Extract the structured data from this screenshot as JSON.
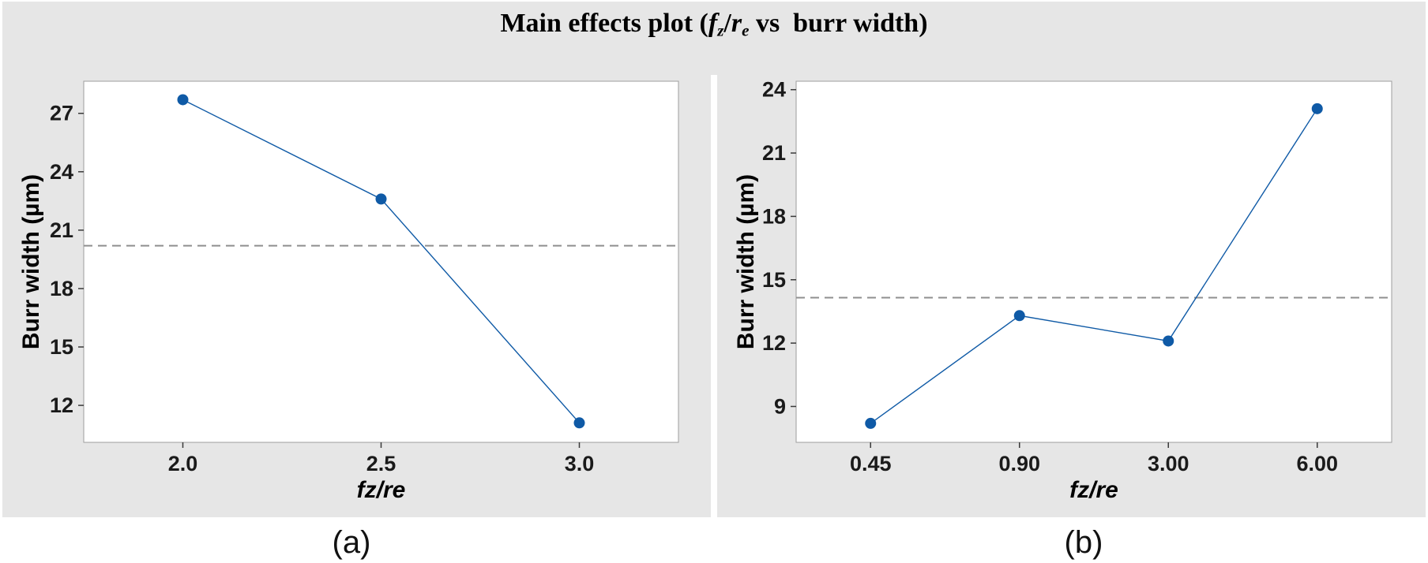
{
  "colors": {
    "series_blue": "#0f5aa6",
    "dash_gray": "#8f8f8f",
    "panel_bg": "#e6e6e6",
    "plot_border": "#9e9e9e",
    "tick_text": "#1a1a1a"
  },
  "title": {
    "text": "Main effects plot (fz/re vs  burr width)",
    "parts": [
      {
        "t": "Main effects plot (",
        "it": false,
        "sub": false
      },
      {
        "t": "f",
        "it": true,
        "sub": false
      },
      {
        "t": "z",
        "it": true,
        "sub": true
      },
      {
        "t": "/",
        "it": false,
        "sub": false
      },
      {
        "t": "r",
        "it": true,
        "sub": false
      },
      {
        "t": "e",
        "it": true,
        "sub": true
      },
      {
        "t": " vs  burr width)",
        "it": false,
        "sub": false
      }
    ]
  },
  "captions": [
    {
      "label": "(a)"
    },
    {
      "label": "(b)"
    }
  ],
  "chart_data": [
    {
      "type": "line",
      "panel": "a",
      "title": "",
      "categories": [
        "2.0",
        "2.5",
        "3.0"
      ],
      "values": [
        27.7,
        22.6,
        11.1
      ],
      "mean_line": 20.2,
      "xlabel": "fz/re",
      "ylabel": "Burr width (µm)",
      "yticks": [
        12,
        15,
        18,
        21,
        24,
        27
      ],
      "ylim": [
        10.1,
        28.65
      ],
      "grid": false,
      "legend": "none"
    },
    {
      "type": "line",
      "panel": "b",
      "title": "",
      "categories": [
        "0.45",
        "0.90",
        "3.00",
        "6.00"
      ],
      "values": [
        8.2,
        13.3,
        12.1,
        23.1
      ],
      "mean_line": 14.15,
      "xlabel": "fz/re",
      "ylabel": "Burr width (µm)",
      "yticks": [
        9,
        12,
        15,
        18,
        21,
        24
      ],
      "ylim": [
        7.3,
        24.4
      ],
      "grid": false,
      "legend": "none"
    }
  ]
}
